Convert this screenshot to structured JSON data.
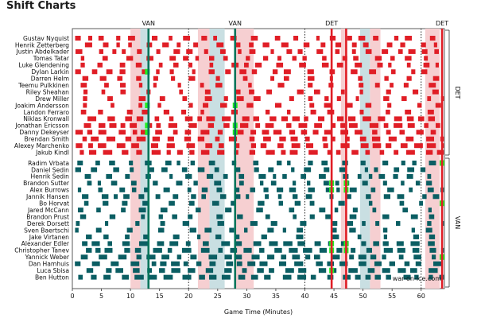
{
  "page": {
    "title": "Shift Charts"
  },
  "chart_data": {
    "type": "shift-chart",
    "title": "Shift Charts",
    "xlabel": "Game Time (Minutes)",
    "xlim": [
      0,
      64
    ],
    "xticks": [
      0,
      5,
      10,
      15,
      20,
      25,
      30,
      35,
      40,
      45,
      50,
      55,
      60
    ],
    "period_ends": [
      20,
      40,
      60
    ],
    "watermark": "war-on-ice.com",
    "colors": {
      "DET": "#e01e26",
      "VAN": "#0b5e63",
      "goal_DET": "#e01e26",
      "goal_VAN": "#00745a",
      "pp_DET": "#f6cfd1",
      "pp_VAN": "#c9dfe2",
      "highlight": "#22ee22"
    },
    "teams": [
      {
        "name": "DET",
        "players": [
          "Gustav Nyquist",
          "Henrik Zetterberg",
          "Justin Abdelkader",
          "Tomas Tatar",
          "Luke Glendening",
          "Dylan Larkin",
          "Darren Helm",
          "Teemu Pulkkinen",
          "Riley Sheahan",
          "Drew Miller",
          "Joakim Andersson",
          "Landon Ferraro",
          "Niklas Kronwall",
          "Jonathan Ericsson",
          "Danny Dekeyser",
          "Brendan Smith",
          "Alexey Marchenko",
          "Jakub Kindl"
        ]
      },
      {
        "name": "VAN",
        "players": [
          "Radim Vrbata",
          "Daniel Sedin",
          "Henrik Sedin",
          "Brandon Sutter",
          "Alex Burrows",
          "Jannik Hansen",
          "Bo Horvat",
          "Jared McCann",
          "Brandon Prust",
          "Derek Dorsett",
          "Sven Baertschi",
          "Jake Virtanen",
          "Alexander Edler",
          "Christopher Tanev",
          "Yannick Weber",
          "Dan Hamhuis",
          "Luca Sbisa",
          "Ben Hutton"
        ]
      }
    ],
    "goals": [
      {
        "team": "VAN",
        "time": 13.1,
        "label": "VAN"
      },
      {
        "team": "VAN",
        "time": 28.0,
        "label": "VAN"
      },
      {
        "team": "DET",
        "time": 44.6,
        "label": "DET"
      },
      {
        "team": "DET",
        "time": 47.1,
        "label": ""
      },
      {
        "team": "DET",
        "time": 63.6,
        "label": "DET"
      }
    ],
    "penalties": [
      {
        "team": "DET",
        "start": 10.0,
        "end": 11.7
      },
      {
        "team": "VAN",
        "start": 11.7,
        "end": 13.1
      },
      {
        "team": "DET",
        "start": 21.6,
        "end": 23.6
      },
      {
        "team": "VAN",
        "start": 23.6,
        "end": 26.2
      },
      {
        "team": "DET",
        "start": 28.0,
        "end": 31.2
      },
      {
        "team": "DET",
        "start": 46.2,
        "end": 47.1
      },
      {
        "team": "VAN",
        "start": 49.5,
        "end": 51.2
      },
      {
        "team": "DET",
        "start": 51.2,
        "end": 53.0
      },
      {
        "team": "DET",
        "start": 60.7,
        "end": 63.2
      }
    ],
    "highlights": [
      {
        "time": 12.9,
        "team": "DET",
        "rows": [
          5,
          10,
          13,
          14
        ]
      },
      {
        "time": 28.0,
        "team": "DET",
        "rows": [
          10,
          13,
          14
        ]
      },
      {
        "time": 44.6,
        "team": "VAN",
        "rows": [
          3,
          4,
          12,
          13,
          16
        ]
      },
      {
        "time": 47.1,
        "team": "VAN",
        "rows": [
          3,
          4,
          12,
          13
        ]
      },
      {
        "time": 63.6,
        "team": "VAN",
        "rows": [
          0,
          6,
          14
        ]
      }
    ]
  }
}
